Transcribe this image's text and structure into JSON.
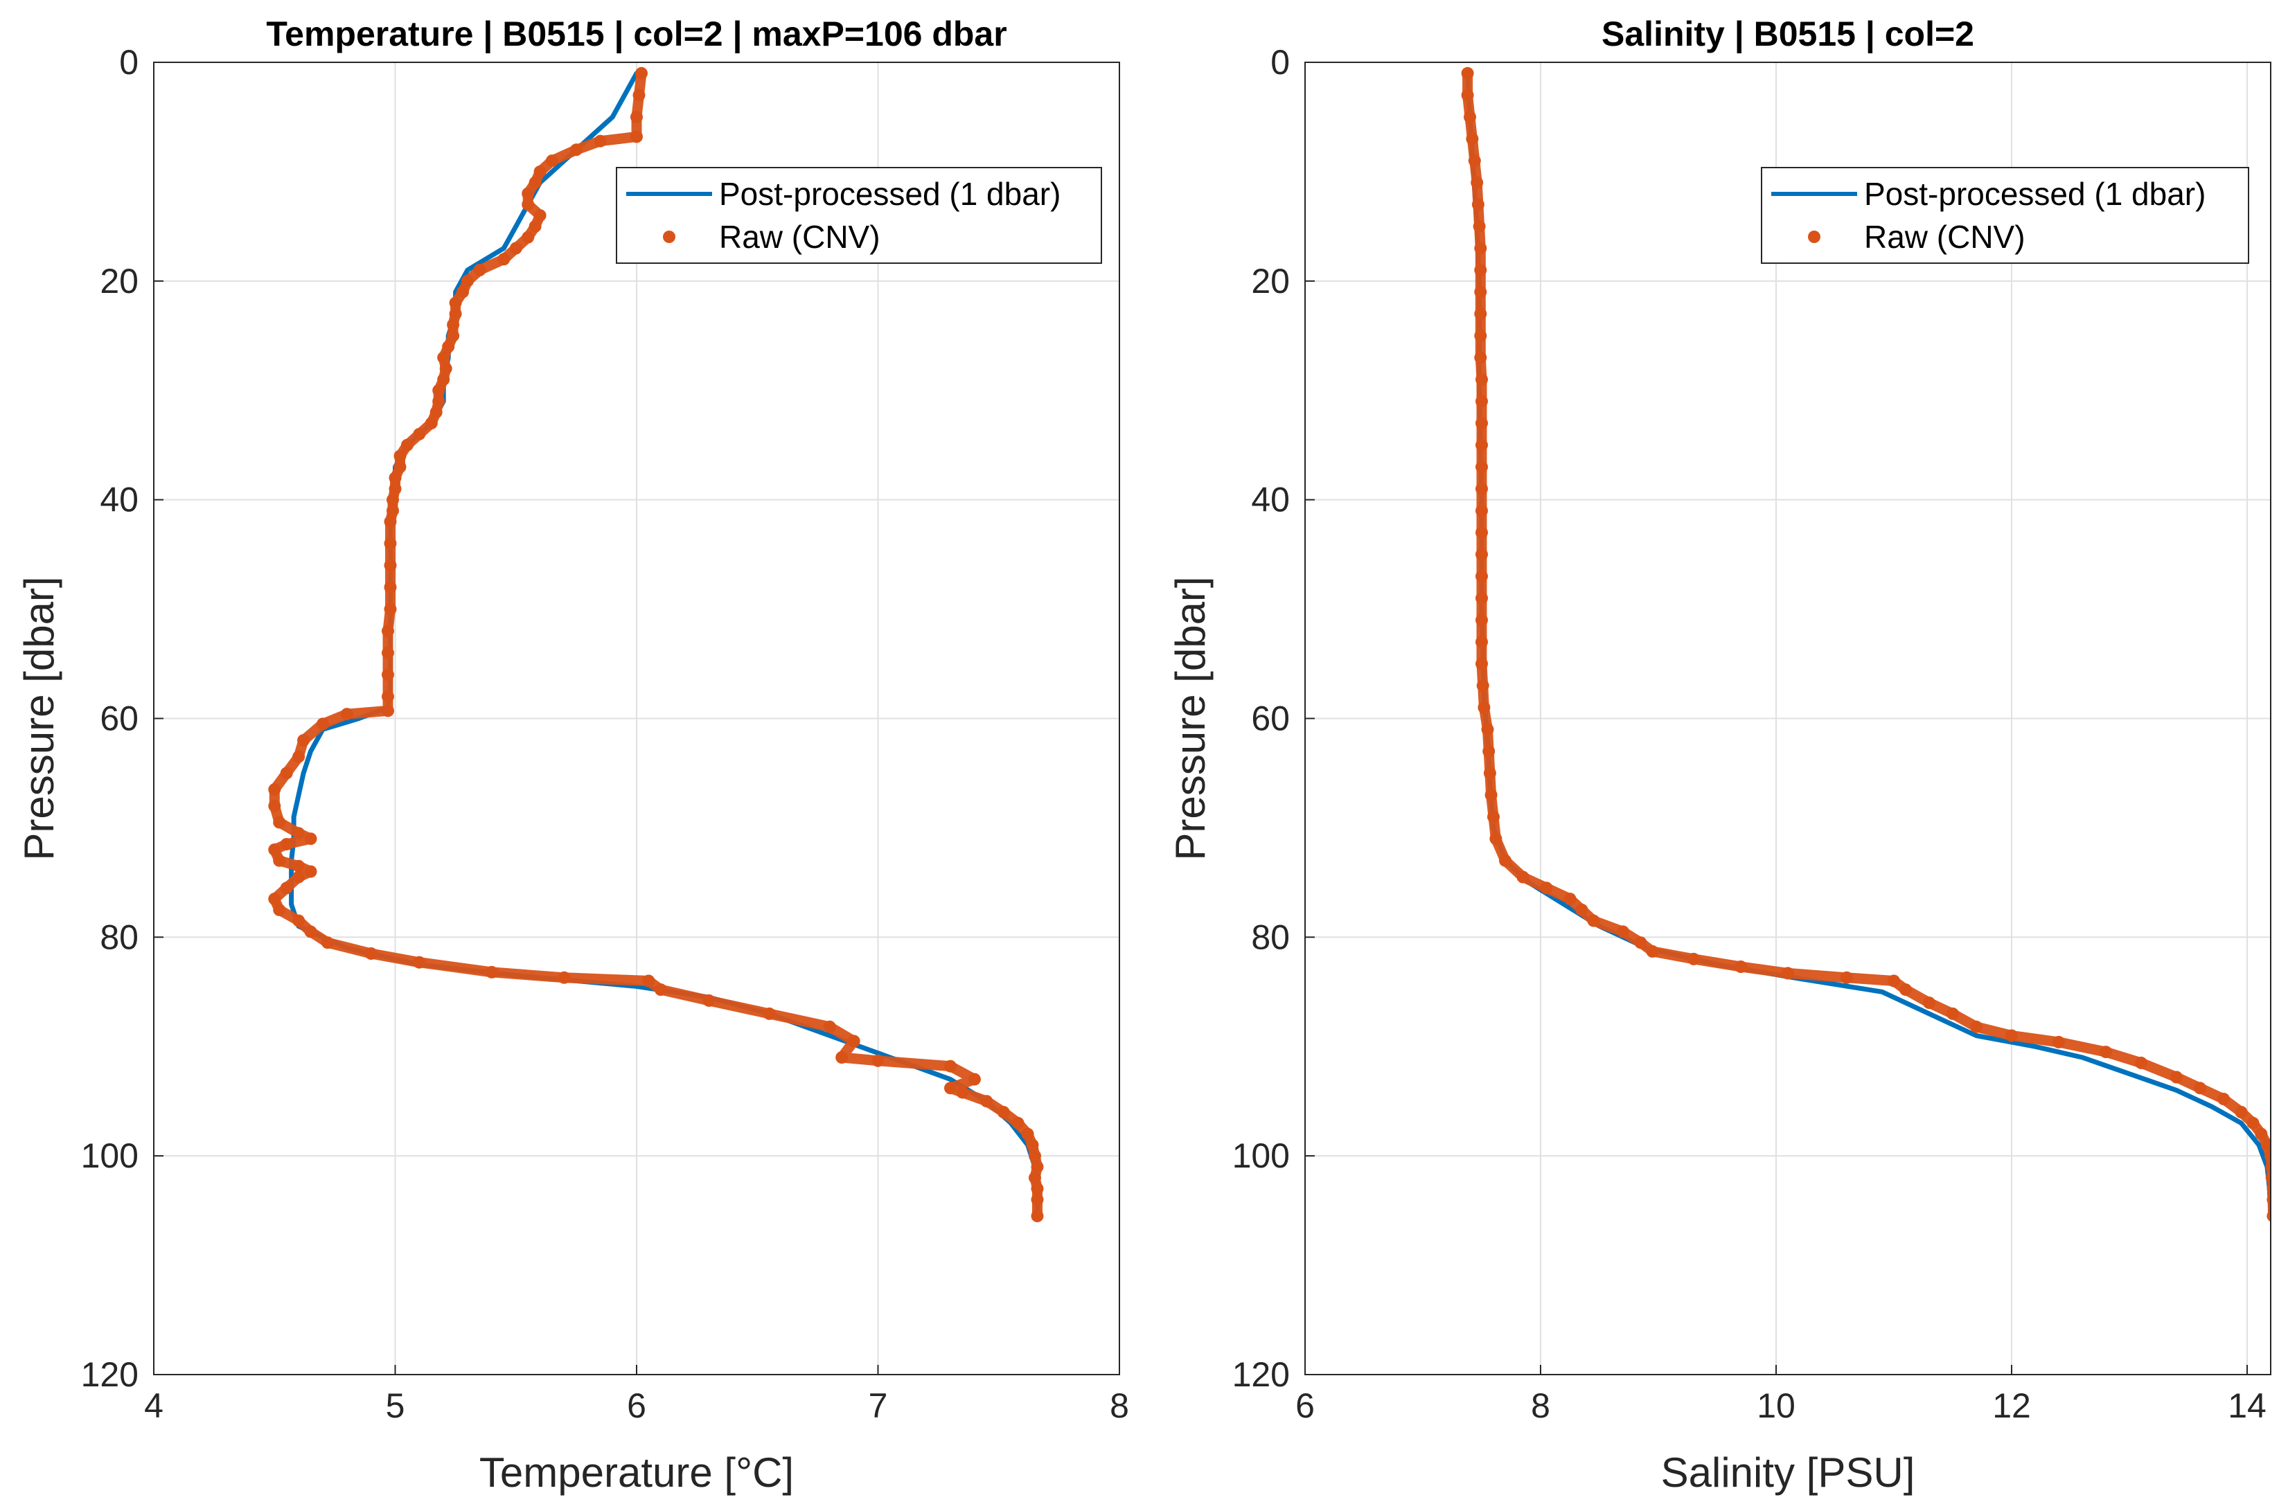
{
  "chart_data": [
    {
      "type": "line",
      "title": "Temperature | B0515 | col=2 | maxP=106 dbar",
      "xlabel": "Temperature [°C]",
      "ylabel": "Pressure [dbar]",
      "xlim": [
        4,
        8
      ],
      "ylim": [
        0,
        120
      ],
      "y_reversed": true,
      "grid": true,
      "legend_position": "top-right",
      "xticks": [
        "4",
        "5",
        "6",
        "7",
        "8"
      ],
      "yticks": [
        "0",
        "20",
        "40",
        "60",
        "80",
        "100",
        "120"
      ],
      "series": [
        {
          "name": "Post-processed (1 dbar)",
          "style": "line",
          "color": "#0072BD",
          "points": [
            [
              6.0,
              1
            ],
            [
              5.95,
              3
            ],
            [
              5.9,
              5
            ],
            [
              5.8,
              7
            ],
            [
              5.7,
              9
            ],
            [
              5.6,
              11
            ],
            [
              5.55,
              13
            ],
            [
              5.5,
              15
            ],
            [
              5.45,
              17
            ],
            [
              5.3,
              19
            ],
            [
              5.25,
              21
            ],
            [
              5.25,
              23
            ],
            [
              5.22,
              25
            ],
            [
              5.22,
              27
            ],
            [
              5.2,
              29
            ],
            [
              5.2,
              31
            ],
            [
              5.15,
              33
            ],
            [
              5.05,
              35
            ],
            [
              5.0,
              37
            ],
            [
              5.0,
              39
            ],
            [
              4.98,
              41
            ],
            [
              4.98,
              43
            ],
            [
              4.98,
              45
            ],
            [
              4.98,
              47
            ],
            [
              4.98,
              49
            ],
            [
              4.98,
              51
            ],
            [
              4.98,
              53
            ],
            [
              4.98,
              55
            ],
            [
              4.98,
              57
            ],
            [
              4.97,
              59
            ],
            [
              4.85,
              60
            ],
            [
              4.7,
              61
            ],
            [
              4.65,
              63
            ],
            [
              4.62,
              65
            ],
            [
              4.6,
              67
            ],
            [
              4.58,
              69
            ],
            [
              4.58,
              71
            ],
            [
              4.57,
              73
            ],
            [
              4.57,
              75
            ],
            [
              4.57,
              77
            ],
            [
              4.6,
              79
            ],
            [
              4.8,
              81
            ],
            [
              5.1,
              82.5
            ],
            [
              5.5,
              83.5
            ],
            [
              6.0,
              84.5
            ],
            [
              6.3,
              85.5
            ],
            [
              6.55,
              87
            ],
            [
              6.8,
              89
            ],
            [
              7.05,
              91
            ],
            [
              7.3,
              93
            ],
            [
              7.45,
              95
            ],
            [
              7.55,
              97
            ],
            [
              7.62,
              99
            ],
            [
              7.65,
              101
            ],
            [
              7.66,
              103
            ],
            [
              7.66,
              105
            ]
          ]
        },
        {
          "name": "Raw (CNV)",
          "style": "dots",
          "color": "#D95319",
          "points": [
            [
              6.02,
              1
            ],
            [
              6.01,
              3
            ],
            [
              6.0,
              5
            ],
            [
              6.0,
              6.8
            ],
            [
              5.85,
              7.2
            ],
            [
              5.75,
              8
            ],
            [
              5.65,
              9
            ],
            [
              5.6,
              10
            ],
            [
              5.58,
              11
            ],
            [
              5.55,
              12
            ],
            [
              5.55,
              13
            ],
            [
              5.6,
              14
            ],
            [
              5.58,
              15
            ],
            [
              5.55,
              16
            ],
            [
              5.5,
              17
            ],
            [
              5.45,
              18
            ],
            [
              5.35,
              19
            ],
            [
              5.3,
              20
            ],
            [
              5.28,
              21
            ],
            [
              5.25,
              22
            ],
            [
              5.25,
              23
            ],
            [
              5.24,
              24
            ],
            [
              5.24,
              25
            ],
            [
              5.22,
              26
            ],
            [
              5.2,
              27
            ],
            [
              5.21,
              28
            ],
            [
              5.2,
              29
            ],
            [
              5.18,
              30
            ],
            [
              5.18,
              31
            ],
            [
              5.17,
              32
            ],
            [
              5.15,
              33
            ],
            [
              5.1,
              34
            ],
            [
              5.05,
              35
            ],
            [
              5.02,
              36
            ],
            [
              5.02,
              37
            ],
            [
              5.0,
              38
            ],
            [
              5.0,
              39
            ],
            [
              4.99,
              40
            ],
            [
              4.99,
              41
            ],
            [
              4.98,
              42
            ],
            [
              4.98,
              44
            ],
            [
              4.98,
              46
            ],
            [
              4.98,
              48
            ],
            [
              4.98,
              50
            ],
            [
              4.97,
              52
            ],
            [
              4.97,
              54
            ],
            [
              4.97,
              56
            ],
            [
              4.97,
              58
            ],
            [
              4.97,
              59.3
            ],
            [
              4.8,
              59.6
            ],
            [
              4.7,
              60.5
            ],
            [
              4.62,
              62
            ],
            [
              4.6,
              63.5
            ],
            [
              4.55,
              65
            ],
            [
              4.5,
              66.5
            ],
            [
              4.5,
              68
            ],
            [
              4.52,
              69.5
            ],
            [
              4.6,
              70.5
            ],
            [
              4.65,
              71
            ],
            [
              4.55,
              71.5
            ],
            [
              4.5,
              72
            ],
            [
              4.52,
              73
            ],
            [
              4.6,
              73.5
            ],
            [
              4.65,
              74
            ],
            [
              4.6,
              74.5
            ],
            [
              4.55,
              75.5
            ],
            [
              4.5,
              76.5
            ],
            [
              4.52,
              77.5
            ],
            [
              4.6,
              78.5
            ],
            [
              4.65,
              79.5
            ],
            [
              4.72,
              80.5
            ],
            [
              4.9,
              81.5
            ],
            [
              5.1,
              82.3
            ],
            [
              5.4,
              83.2
            ],
            [
              5.7,
              83.7
            ],
            [
              6.05,
              84
            ],
            [
              6.1,
              84.8
            ],
            [
              6.3,
              85.8
            ],
            [
              6.55,
              87
            ],
            [
              6.8,
              88.2
            ],
            [
              6.9,
              89.5
            ],
            [
              6.85,
              91
            ],
            [
              7.0,
              91.3
            ],
            [
              7.3,
              91.8
            ],
            [
              7.4,
              93
            ],
            [
              7.3,
              93.8
            ],
            [
              7.35,
              94.2
            ],
            [
              7.45,
              95
            ],
            [
              7.52,
              96
            ],
            [
              7.58,
              97
            ],
            [
              7.62,
              98
            ],
            [
              7.64,
              99
            ],
            [
              7.65,
              100
            ],
            [
              7.66,
              101
            ],
            [
              7.65,
              102
            ],
            [
              7.66,
              103
            ],
            [
              7.66,
              104
            ],
            [
              7.66,
              105.5
            ]
          ]
        }
      ]
    },
    {
      "type": "line",
      "title": "Salinity | B0515 | col=2",
      "xlabel": "Salinity [PSU]",
      "ylabel": "Pressure [dbar]",
      "xlim": [
        6,
        14.2
      ],
      "ylim": [
        0,
        120
      ],
      "y_reversed": true,
      "grid": true,
      "legend_position": "top-right",
      "xticks": [
        "6",
        "8",
        "10",
        "12",
        "14"
      ],
      "yticks": [
        "0",
        "20",
        "40",
        "60",
        "80",
        "100",
        "120"
      ],
      "series": [
        {
          "name": "Post-processed (1 dbar)",
          "style": "line",
          "color": "#0072BD",
          "points": [
            [
              7.38,
              1
            ],
            [
              7.4,
              5
            ],
            [
              7.43,
              10
            ],
            [
              7.46,
              15
            ],
            [
              7.48,
              20
            ],
            [
              7.48,
              30
            ],
            [
              7.5,
              40
            ],
            [
              7.5,
              50
            ],
            [
              7.52,
              58
            ],
            [
              7.55,
              62
            ],
            [
              7.57,
              66
            ],
            [
              7.6,
              70
            ],
            [
              7.7,
              73
            ],
            [
              7.9,
              75
            ],
            [
              8.2,
              77
            ],
            [
              8.5,
              79
            ],
            [
              8.9,
              81
            ],
            [
              9.5,
              82.5
            ],
            [
              10.2,
              83.8
            ],
            [
              10.9,
              85
            ],
            [
              11.3,
              87
            ],
            [
              11.7,
              89
            ],
            [
              12.2,
              90
            ],
            [
              12.6,
              91
            ],
            [
              13.0,
              92.5
            ],
            [
              13.4,
              94
            ],
            [
              13.7,
              95.5
            ],
            [
              13.95,
              97
            ],
            [
              14.1,
              99
            ],
            [
              14.17,
              101
            ],
            [
              14.19,
              103
            ],
            [
              14.2,
              105.5
            ]
          ]
        },
        {
          "name": "Raw (CNV)",
          "style": "dots",
          "color": "#D95319",
          "points": [
            [
              7.38,
              1
            ],
            [
              7.38,
              3
            ],
            [
              7.4,
              5
            ],
            [
              7.42,
              7
            ],
            [
              7.44,
              9
            ],
            [
              7.46,
              11
            ],
            [
              7.47,
              13
            ],
            [
              7.48,
              15
            ],
            [
              7.49,
              17
            ],
            [
              7.49,
              19
            ],
            [
              7.49,
              21
            ],
            [
              7.49,
              23
            ],
            [
              7.49,
              25
            ],
            [
              7.49,
              27
            ],
            [
              7.5,
              29
            ],
            [
              7.5,
              31
            ],
            [
              7.5,
              33
            ],
            [
              7.5,
              35
            ],
            [
              7.5,
              37
            ],
            [
              7.5,
              39
            ],
            [
              7.5,
              41
            ],
            [
              7.5,
              43
            ],
            [
              7.5,
              45
            ],
            [
              7.5,
              47
            ],
            [
              7.5,
              49
            ],
            [
              7.5,
              51
            ],
            [
              7.5,
              53
            ],
            [
              7.5,
              55
            ],
            [
              7.51,
              57
            ],
            [
              7.52,
              59
            ],
            [
              7.55,
              61
            ],
            [
              7.56,
              63
            ],
            [
              7.57,
              65
            ],
            [
              7.58,
              67
            ],
            [
              7.6,
              69
            ],
            [
              7.62,
              71
            ],
            [
              7.7,
              73
            ],
            [
              7.85,
              74.5
            ],
            [
              8.05,
              75.5
            ],
            [
              8.25,
              76.5
            ],
            [
              8.35,
              77.5
            ],
            [
              8.45,
              78.5
            ],
            [
              8.7,
              79.5
            ],
            [
              8.85,
              80.5
            ],
            [
              8.95,
              81.3
            ],
            [
              9.3,
              82
            ],
            [
              9.7,
              82.7
            ],
            [
              10.1,
              83.3
            ],
            [
              10.6,
              83.7
            ],
            [
              11.0,
              84
            ],
            [
              11.1,
              84.8
            ],
            [
              11.3,
              86
            ],
            [
              11.5,
              87
            ],
            [
              11.7,
              88.2
            ],
            [
              12.0,
              89
            ],
            [
              12.4,
              89.6
            ],
            [
              12.8,
              90.5
            ],
            [
              13.1,
              91.5
            ],
            [
              13.4,
              92.8
            ],
            [
              13.6,
              93.8
            ],
            [
              13.8,
              94.8
            ],
            [
              13.95,
              96
            ],
            [
              14.05,
              97
            ],
            [
              14.12,
              98
            ],
            [
              14.17,
              99
            ],
            [
              14.2,
              100
            ],
            [
              14.21,
              101
            ],
            [
              14.21,
              102
            ],
            [
              14.22,
              103
            ],
            [
              14.22,
              104
            ],
            [
              14.22,
              105.5
            ]
          ]
        }
      ]
    }
  ]
}
